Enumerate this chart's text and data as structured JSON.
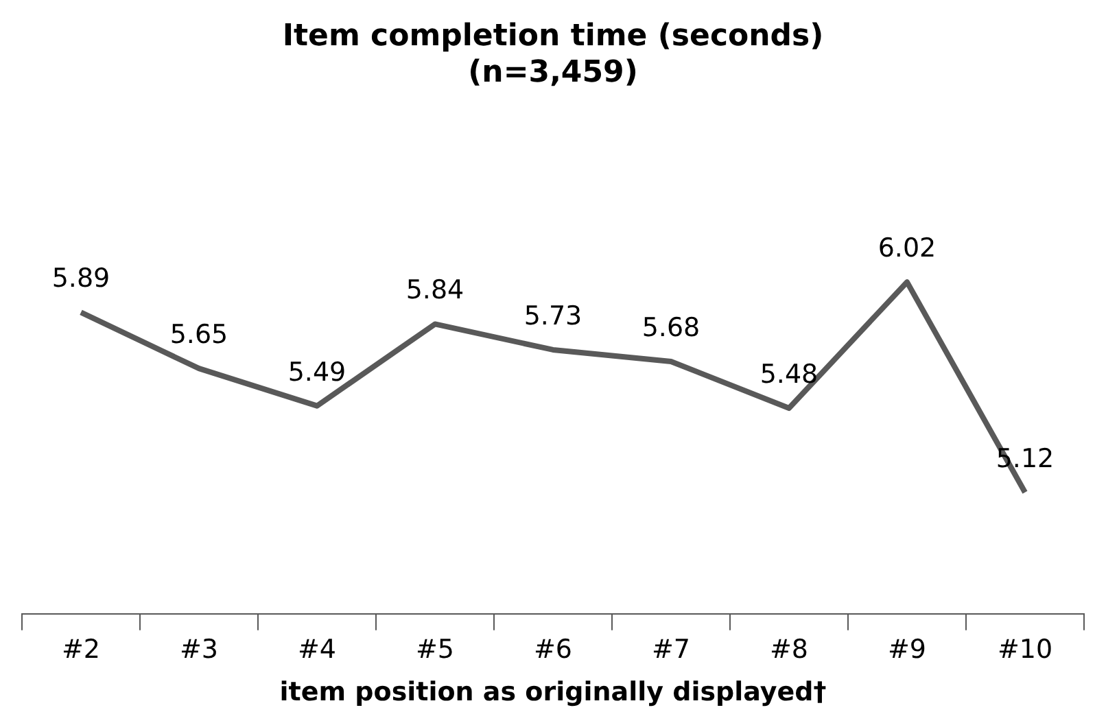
{
  "chart_data": {
    "type": "line",
    "title": "Item completion time (seconds)\n(n=3,459)",
    "xlabel": "item position as originally displayed†",
    "categories": [
      "#2",
      "#3",
      "#4",
      "#5",
      "#6",
      "#7",
      "#8",
      "#9",
      "#10"
    ],
    "series": [
      {
        "color": "#595959",
        "values": [
          5.89,
          5.65,
          5.49,
          5.84,
          5.73,
          5.68,
          5.48,
          6.02,
          5.12
        ]
      }
    ],
    "data_labels": true,
    "grid": false,
    "legend": false,
    "marker": "none",
    "line_style": "solid",
    "tick_labels": "x"
  }
}
